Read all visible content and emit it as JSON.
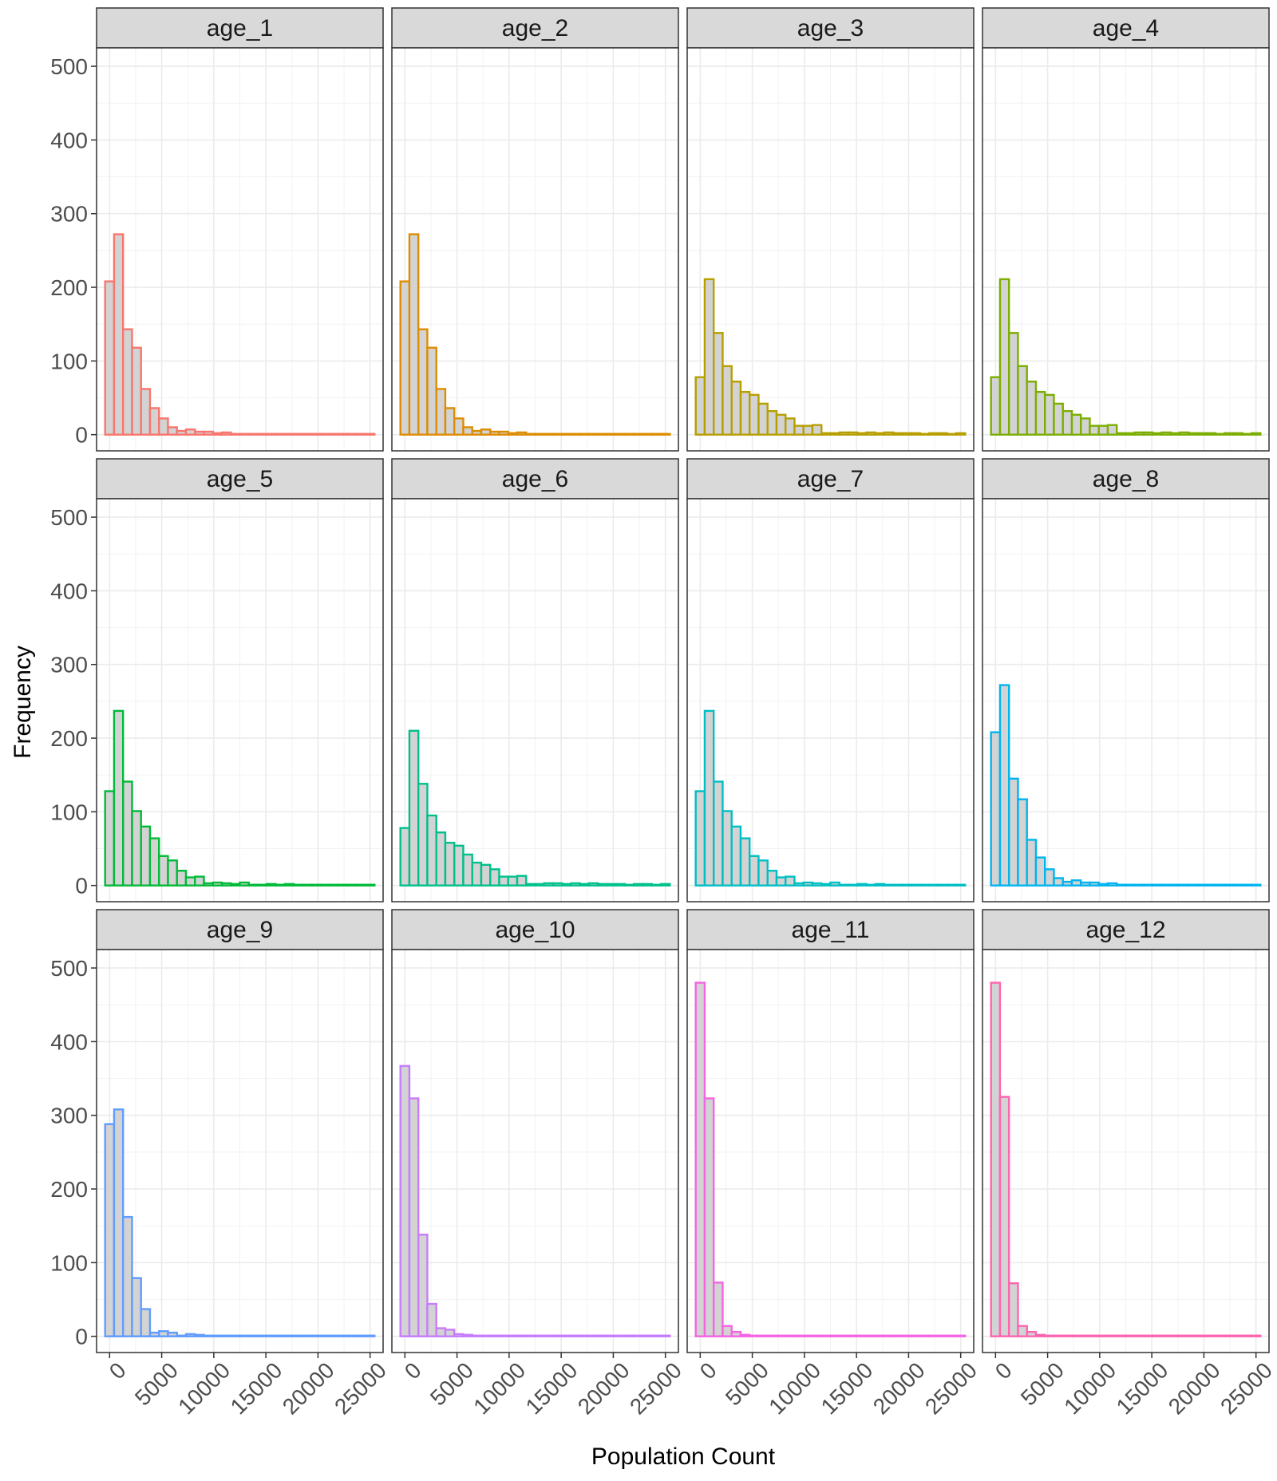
{
  "chart_data": {
    "type": "bar",
    "subtype": "histogram-facet-grid",
    "xlabel": "Population Count",
    "ylabel": "Frequency",
    "xlim": [
      -1250,
      26250
    ],
    "ylim": [
      -22,
      525
    ],
    "xticks": [
      0,
      5000,
      10000,
      15000,
      20000,
      25000
    ],
    "yticks": [
      0,
      100,
      200,
      300,
      400,
      500
    ],
    "bin_width": 862,
    "bin_start": -431,
    "bar_fill": "#d3d3d3",
    "grid": true,
    "strip_fill": "#d9d9d9",
    "facets": [
      {
        "label": "age_1",
        "color": "#F8766D",
        "counts": [
          208,
          272,
          143,
          118,
          62,
          36,
          22,
          10,
          5,
          7,
          4,
          4,
          2,
          3,
          1,
          1,
          1,
          1,
          1,
          1,
          1,
          1,
          1,
          1,
          1,
          1,
          1,
          1,
          1,
          1
        ]
      },
      {
        "label": "age_2",
        "color": "#DE8C00",
        "counts": [
          208,
          272,
          143,
          118,
          62,
          36,
          22,
          10,
          5,
          7,
          4,
          4,
          2,
          3,
          1,
          1,
          1,
          1,
          1,
          1,
          1,
          1,
          1,
          1,
          1,
          1,
          1,
          1,
          1,
          1
        ]
      },
      {
        "label": "age_3",
        "color": "#B79F00",
        "counts": [
          78,
          211,
          138,
          93,
          72,
          58,
          54,
          42,
          32,
          27,
          22,
          12,
          12,
          13,
          2,
          2,
          3,
          3,
          2,
          3,
          2,
          3,
          2,
          2,
          2,
          1,
          2,
          2,
          1,
          2
        ]
      },
      {
        "label": "age_4",
        "color": "#7CAE00",
        "counts": [
          78,
          211,
          138,
          93,
          72,
          58,
          54,
          42,
          32,
          27,
          22,
          12,
          12,
          13,
          2,
          2,
          3,
          3,
          2,
          3,
          2,
          3,
          2,
          2,
          2,
          1,
          2,
          2,
          1,
          2
        ]
      },
      {
        "label": "age_5",
        "color": "#00BA38",
        "counts": [
          128,
          237,
          141,
          101,
          80,
          64,
          40,
          34,
          20,
          11,
          12,
          3,
          4,
          3,
          2,
          4,
          1,
          1,
          2,
          1,
          2,
          1,
          1,
          1,
          1,
          1,
          1,
          1,
          1,
          1
        ]
      },
      {
        "label": "age_6",
        "color": "#00C08B",
        "counts": [
          78,
          210,
          138,
          95,
          72,
          58,
          54,
          42,
          31,
          28,
          22,
          12,
          12,
          13,
          2,
          2,
          3,
          3,
          2,
          3,
          2,
          3,
          2,
          2,
          2,
          1,
          2,
          2,
          1,
          2
        ]
      },
      {
        "label": "age_7",
        "color": "#00BFC4",
        "counts": [
          128,
          237,
          141,
          101,
          80,
          64,
          40,
          34,
          20,
          11,
          12,
          3,
          4,
          3,
          2,
          4,
          1,
          1,
          2,
          1,
          2,
          1,
          1,
          1,
          1,
          1,
          1,
          1,
          1,
          1
        ]
      },
      {
        "label": "age_8",
        "color": "#00B4F0",
        "counts": [
          208,
          272,
          145,
          117,
          62,
          38,
          22,
          10,
          5,
          7,
          4,
          4,
          2,
          3,
          1,
          1,
          1,
          1,
          1,
          1,
          1,
          1,
          1,
          1,
          1,
          1,
          1,
          1,
          1,
          1
        ]
      },
      {
        "label": "age_9",
        "color": "#619CFF",
        "counts": [
          288,
          308,
          162,
          79,
          37,
          5,
          7,
          5,
          1,
          3,
          2,
          1,
          1,
          1,
          1,
          1,
          1,
          1,
          1,
          1,
          1,
          1,
          1,
          1,
          1,
          1,
          1,
          1,
          1,
          1
        ]
      },
      {
        "label": "age_10",
        "color": "#C77CFF",
        "counts": [
          367,
          323,
          138,
          44,
          11,
          9,
          3,
          2,
          1,
          1,
          1,
          1,
          1,
          1,
          1,
          1,
          1,
          1,
          1,
          1,
          1,
          1,
          1,
          1,
          1,
          1,
          1,
          1,
          1,
          1
        ]
      },
      {
        "label": "age_11",
        "color": "#F564E3",
        "counts": [
          480,
          323,
          73,
          14,
          6,
          2,
          1,
          1,
          1,
          1,
          1,
          1,
          1,
          1,
          1,
          1,
          1,
          1,
          1,
          1,
          1,
          1,
          1,
          1,
          1,
          1,
          1,
          1,
          1,
          1
        ]
      },
      {
        "label": "age_12",
        "color": "#FF64B0",
        "counts": [
          480,
          325,
          72,
          14,
          6,
          2,
          1,
          1,
          1,
          1,
          1,
          1,
          1,
          1,
          1,
          1,
          1,
          1,
          1,
          1,
          1,
          1,
          1,
          1,
          1,
          1,
          1,
          1,
          1,
          1
        ]
      }
    ]
  }
}
